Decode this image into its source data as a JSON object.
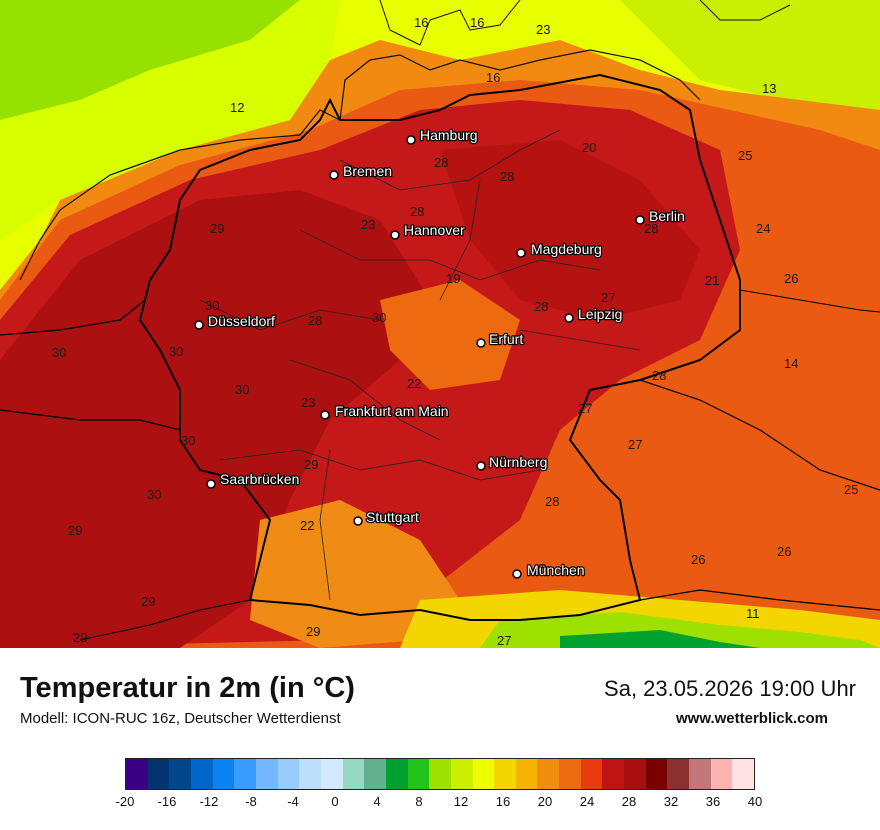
{
  "title": "Temperatur in 2m (in °C)",
  "subtitle": "Modell: ICON-RUC 16z, Deutscher Wetterdienst",
  "datetime": "Sa, 23.05.2026 19:00 Uhr",
  "website": "www.wetterblick.com",
  "cities": [
    "Hamburg",
    "Bremen",
    "Hannover",
    "Berlin",
    "Magdeburg",
    "Düsseldorf",
    "Leipzig",
    "Erfurt",
    "Frankfurt am Main",
    "Nürnberg",
    "Saarbrücken",
    "Stuttgart",
    "München"
  ],
  "map_numbers": [
    "16",
    "16",
    "23",
    "16",
    "12",
    "13",
    "28",
    "20",
    "28",
    "25",
    "28",
    "23",
    "29",
    "28",
    "24",
    "21",
    "19",
    "26",
    "30",
    "28",
    "28",
    "27",
    "30",
    "30",
    "14",
    "30",
    "22",
    "28",
    "23",
    "27",
    "30",
    "27",
    "29",
    "25",
    "30",
    "28",
    "29",
    "22",
    "26",
    "26",
    "30",
    "29",
    "11",
    "29",
    "29",
    "27"
  ],
  "legend": {
    "colors": [
      "#3b0086",
      "#003370",
      "#00468a",
      "#0066cc",
      "#0a82f0",
      "#3b9cff",
      "#73b8ff",
      "#9acbff",
      "#bddfff",
      "#d4e9ff",
      "#95dac0",
      "#62b08c",
      "#00a12f",
      "#22c419",
      "#9ee000",
      "#ccef00",
      "#ecff00",
      "#f3d600",
      "#f2b400",
      "#f18e10",
      "#ee6a10",
      "#e93a10",
      "#c01414",
      "#a80f0f",
      "#7b0000",
      "#8b2f2f",
      "#c07878",
      "#ffb4b4",
      "#ffe3e3"
    ],
    "ticks": [
      "-20",
      "-16",
      "-12",
      "-8",
      "-4",
      "0",
      "4",
      "8",
      "12",
      "16",
      "20",
      "24",
      "28",
      "32",
      "36",
      "40"
    ]
  }
}
